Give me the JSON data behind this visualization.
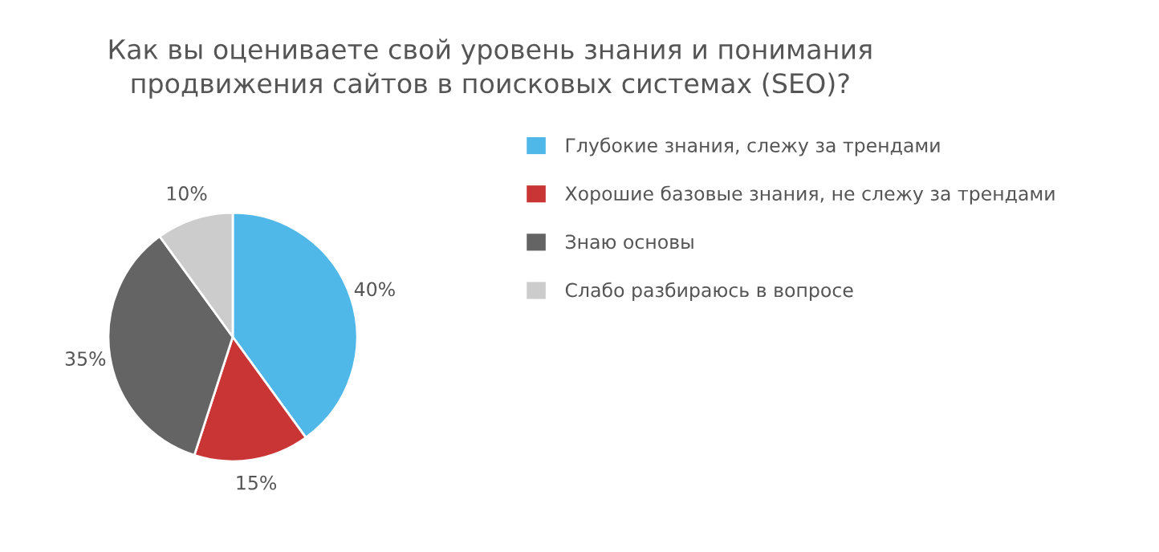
{
  "chart_data": {
    "type": "pie",
    "title": "Как вы оцениваете свой уровень знания и понимания\nпродвижения сайтов в поисковых системах (SEO)?",
    "categories": [
      "Глубокие знания, слежу за трендами",
      "Хорошие базовые знания, не слежу за трендами",
      "Знаю основы",
      "Слабо разбираюсь в вопросе"
    ],
    "values": [
      40,
      15,
      35,
      10
    ],
    "colors": [
      "#4fb8e8",
      "#c93535",
      "#646464",
      "#cccccc"
    ],
    "value_labels": [
      "40%",
      "15%",
      "35%",
      "10%"
    ],
    "legend": "right"
  }
}
